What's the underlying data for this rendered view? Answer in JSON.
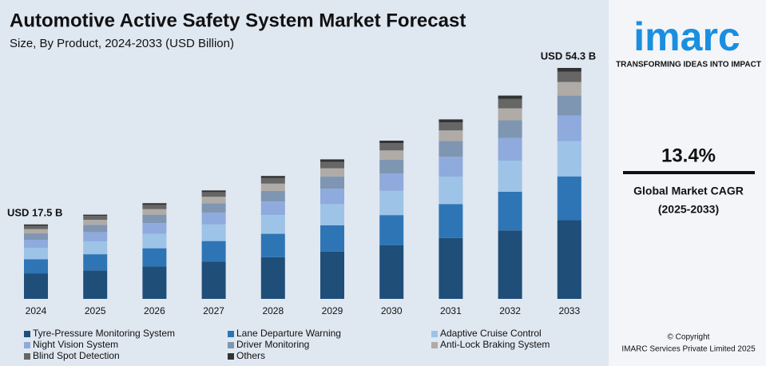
{
  "chart_data": {
    "type": "stacked-bar",
    "title": "Automotive Active Safety System Market Forecast",
    "subtitle": "Size, By Product, 2024-2033 (USD Billion)",
    "categories": [
      "2024",
      "2025",
      "2026",
      "2027",
      "2028",
      "2029",
      "2030",
      "2031",
      "2032",
      "2033"
    ],
    "series": [
      {
        "name": "Tyre-Pressure Monitoring System",
        "color": "#1f4e79",
        "values": [
          6.0,
          6.7,
          7.6,
          8.8,
          9.8,
          11.1,
          12.6,
          14.3,
          16.1,
          18.5
        ]
      },
      {
        "name": "Lane Departure Warning",
        "color": "#2e75b6",
        "values": [
          3.3,
          3.8,
          4.3,
          4.8,
          5.5,
          6.2,
          7.1,
          8.0,
          9.1,
          10.3
        ]
      },
      {
        "name": "Adaptive Cruise Control",
        "color": "#9dc3e6",
        "values": [
          2.7,
          3.0,
          3.4,
          3.9,
          4.4,
          5.0,
          5.7,
          6.4,
          7.3,
          8.3
        ]
      },
      {
        "name": "Night Vision System",
        "color": "#8faadc",
        "values": [
          1.9,
          2.2,
          2.5,
          2.8,
          3.2,
          3.6,
          4.1,
          4.7,
          5.3,
          6.0
        ]
      },
      {
        "name": "Driver Monitoring",
        "color": "#7f96b2",
        "values": [
          1.5,
          1.7,
          2.0,
          2.2,
          2.5,
          2.9,
          3.2,
          3.7,
          4.2,
          4.7
        ]
      },
      {
        "name": "Anti-Lock Braking System",
        "color": "#b0aba6",
        "values": [
          1.0,
          1.2,
          1.3,
          1.5,
          1.7,
          1.9,
          2.2,
          2.5,
          2.8,
          3.2
        ]
      },
      {
        "name": "Blind Spot Detection",
        "color": "#666666",
        "values": [
          0.8,
          0.9,
          1.0,
          1.1,
          1.3,
          1.5,
          1.7,
          1.9,
          2.2,
          2.4
        ]
      },
      {
        "name": "Others",
        "color": "#333333",
        "values": [
          0.3,
          0.3,
          0.4,
          0.4,
          0.5,
          0.6,
          0.6,
          0.7,
          0.8,
          0.9
        ]
      }
    ],
    "annotations": [
      "USD 17.5 B",
      "USD 54.3 B"
    ]
  },
  "branding": {
    "logo": "imarc",
    "tagline": "TRANSFORMING IDEAS INTO IMPACT",
    "cagr": "13.4%",
    "cagr_label": "Global Market CAGR",
    "cagr_period": "(2025-2033)",
    "copyright": "© Copyright",
    "company": "IMARC Services Private Limited 2025"
  }
}
